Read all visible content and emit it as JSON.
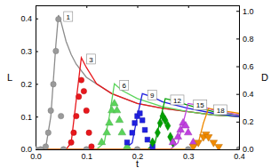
{
  "chart_data": {
    "type": "line",
    "x_label": "t",
    "y_label": "L",
    "y2_label": "D",
    "xlim": [
      0,
      0.4
    ],
    "xticks": [
      {
        "value": 0,
        "label": "0.0"
      },
      {
        "value": 0.1,
        "label": "0.1"
      },
      {
        "value": 0.2,
        "label": "0.2"
      },
      {
        "value": 0.3,
        "label": "0.3"
      },
      {
        "value": 0.4,
        "label": "0.4"
      }
    ],
    "ylim": [
      0,
      0.44
    ],
    "yticks": [
      {
        "value": 0,
        "label": "0.0"
      },
      {
        "value": 0.1,
        "label": "0.1"
      },
      {
        "value": 0.2,
        "label": "0.2"
      },
      {
        "value": 0.3,
        "label": "0.3"
      },
      {
        "value": 0.4,
        "label": "0.4"
      }
    ],
    "y2lim": [
      0,
      1.04
    ],
    "y2ticks": [
      {
        "value": 0,
        "label": "0.0"
      },
      {
        "value": 0.2,
        "label": "0.2"
      },
      {
        "value": 0.4,
        "label": "0.4"
      },
      {
        "value": 0.6,
        "label": "0.6"
      },
      {
        "value": 0.8,
        "label": "0.8"
      },
      {
        "value": 1,
        "label": "1.0"
      }
    ],
    "series": [
      {
        "name": "1",
        "type": "line",
        "color": "#8c8c8c",
        "x": [
          0,
          0.02,
          0.03,
          0.04,
          0.045,
          0.05,
          0.06,
          0.07,
          0.08,
          0.1,
          0.12,
          0.15,
          0.2,
          0.25,
          0.3,
          0.35,
          0.4
        ],
        "values": [
          0,
          0.005,
          0.1,
          0.32,
          0.41,
          0.39,
          0.33,
          0.29,
          0.26,
          0.22,
          0.2,
          0.17,
          0.14,
          0.125,
          0.115,
          0.105,
          0.1
        ]
      },
      {
        "name": "3",
        "type": "line",
        "color": "#e8171c",
        "x": [
          0,
          0.06,
          0.07,
          0.08,
          0.09,
          0.1,
          0.12,
          0.15,
          0.2,
          0.25,
          0.3,
          0.35,
          0.4
        ],
        "values": [
          0,
          0,
          0.02,
          0.15,
          0.28,
          0.25,
          0.2,
          0.17,
          0.14,
          0.125,
          0.115,
          0.105,
          0.1
        ]
      },
      {
        "name": "6",
        "type": "line",
        "color": "#5ad45a",
        "x": [
          0,
          0.12,
          0.135,
          0.145,
          0.155,
          0.17,
          0.2,
          0.25,
          0.3,
          0.35,
          0.4
        ],
        "values": [
          0,
          0,
          0.02,
          0.1,
          0.2,
          0.18,
          0.155,
          0.13,
          0.115,
          0.105,
          0.1
        ]
      },
      {
        "name": "9",
        "type": "line",
        "color": "#1f1fe0",
        "x": [
          0,
          0.175,
          0.19,
          0.2,
          0.21,
          0.23,
          0.25,
          0.3,
          0.35,
          0.4
        ],
        "values": [
          0,
          0,
          0.02,
          0.1,
          0.17,
          0.16,
          0.145,
          0.125,
          0.11,
          0.1
        ]
      },
      {
        "name": "12",
        "type": "line",
        "color": "#00a000",
        "x": [
          0,
          0.22,
          0.235,
          0.245,
          0.255,
          0.27,
          0.3,
          0.35,
          0.4
        ],
        "values": [
          0,
          0,
          0.02,
          0.09,
          0.155,
          0.15,
          0.135,
          0.115,
          0.105
        ]
      },
      {
        "name": "15",
        "type": "line",
        "color": "#c040e0",
        "x": [
          0,
          0.265,
          0.28,
          0.29,
          0.3,
          0.32,
          0.35,
          0.4
        ],
        "values": [
          0,
          0,
          0.02,
          0.08,
          0.14,
          0.135,
          0.12,
          0.105
        ]
      },
      {
        "name": "18",
        "type": "line",
        "color": "#f08a00",
        "x": [
          0,
          0.31,
          0.32,
          0.33,
          0.34,
          0.36,
          0.4
        ],
        "values": [
          0,
          0,
          0.02,
          0.08,
          0.125,
          0.12,
          0.11
        ]
      },
      {
        "type": "scatter",
        "axis": "y2",
        "marker": "circle",
        "color": "#9a9a9a",
        "x": [
          0,
          0.01,
          0.02,
          0.025,
          0.03,
          0.035,
          0.04,
          0.045,
          0.05,
          0.055,
          0.1,
          0.2,
          0.3,
          0.4
        ],
        "values": [
          0,
          0,
          0.02,
          0.12,
          0.28,
          0.47,
          0.71,
          0.94,
          0.24,
          0,
          0,
          0,
          0,
          0
        ]
      },
      {
        "type": "scatter",
        "axis": "y2",
        "marker": "circle",
        "color": "#e8171c",
        "x": [
          0.07,
          0.075,
          0.08,
          0.085,
          0.09,
          0.095,
          0.1,
          0.105,
          0.11
        ],
        "values": [
          0.05,
          0.12,
          0.24,
          0.38,
          0.5,
          0.42,
          0.28,
          0.12,
          0.02
        ]
      },
      {
        "type": "scatter",
        "axis": "y2",
        "marker": "triangle",
        "color": "#5ad45a",
        "x": [
          0.13,
          0.14,
          0.145,
          0.15,
          0.155,
          0.16,
          0.165,
          0.17,
          0.18
        ],
        "values": [
          0.05,
          0.12,
          0.19,
          0.28,
          0.33,
          0.28,
          0.21,
          0.12,
          0.02
        ]
      },
      {
        "type": "scatter",
        "axis": "y2",
        "marker": "square",
        "color": "#1f1fe0",
        "x": [
          0.18,
          0.19,
          0.195,
          0.2,
          0.205,
          0.21,
          0.215,
          0.22,
          0.23
        ],
        "values": [
          0.05,
          0.12,
          0.19,
          0.24,
          0.26,
          0.21,
          0.14,
          0.07,
          0.02
        ]
      },
      {
        "type": "scatter",
        "axis": "y2",
        "marker": "diamond",
        "color": "#00a000",
        "x": [
          0.23,
          0.24,
          0.245,
          0.25,
          0.255,
          0.26,
          0.265,
          0.27
        ],
        "values": [
          0.05,
          0.12,
          0.19,
          0.24,
          0.21,
          0.17,
          0.09,
          0.05
        ]
      },
      {
        "type": "scatter",
        "axis": "y2",
        "marker": "triangle",
        "color": "#c040e0",
        "x": [
          0.27,
          0.28,
          0.285,
          0.29,
          0.295,
          0.3,
          0.31
        ],
        "values": [
          0.05,
          0.09,
          0.14,
          0.19,
          0.17,
          0.12,
          0.05
        ]
      },
      {
        "type": "scatter",
        "axis": "y2",
        "marker": "triangle-down",
        "color": "#f08a00",
        "x": [
          0.31,
          0.32,
          0.33,
          0.335,
          0.34,
          0.35,
          0.36
        ],
        "values": [
          0.02,
          0.05,
          0.09,
          0.11,
          0.09,
          0.05,
          0.02
        ]
      }
    ]
  }
}
